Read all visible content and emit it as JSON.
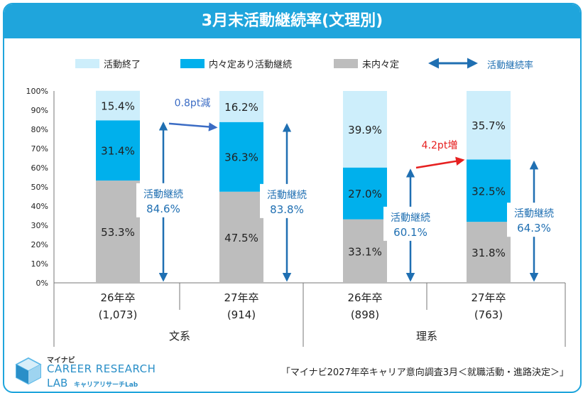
{
  "title": "3月末活動継続率(文理別)",
  "source": "「マイナビ2027年卒キャリア意向調査3月＜就職活動・進路決定＞」",
  "logo": {
    "small": "マイナビ",
    "main": "CAREER RESEARCH",
    "lab": "LAB",
    "sub": "キャリアリサーチLab"
  },
  "colors": {
    "title_bg": "#1fa5dc",
    "ended": "#cdeefb",
    "continuing": "#00b0ec",
    "undecided": "#bdbdbd",
    "arrow": "#1f6fb2",
    "annotation_blue": "#3b6cc4",
    "annotation_red": "#e62020"
  },
  "chart_data": {
    "type": "bar",
    "stacked": true,
    "title": "3月末活動継続率(文理別)",
    "ylim": [
      0,
      100
    ],
    "yticks": [
      "0%",
      "10%",
      "20%",
      "30%",
      "40%",
      "50%",
      "60%",
      "70%",
      "80%",
      "90%",
      "100%"
    ],
    "legend": [
      {
        "key": "ended",
        "label": "活動終了"
      },
      {
        "key": "continuing",
        "label": "内々定あり活動継続"
      },
      {
        "key": "undecided",
        "label": "未内々定"
      },
      {
        "key": "rate",
        "label": "活動継続率"
      }
    ],
    "categories": [
      "26年卒",
      "27年卒",
      "26年卒",
      "27年卒"
    ],
    "sample_sizes": [
      "(1,073)",
      "(914)",
      "(898)",
      "(763)"
    ],
    "groups": [
      {
        "label": "文系",
        "start": 0,
        "end": 1
      },
      {
        "label": "理系",
        "start": 2,
        "end": 3
      }
    ],
    "series": [
      {
        "name": "未内々定",
        "key": "undecided",
        "values": [
          53.3,
          47.5,
          33.1,
          31.8
        ],
        "labels": [
          "53.3%",
          "47.5%",
          "33.1%",
          "31.8%"
        ]
      },
      {
        "name": "内々定あり活動継続",
        "key": "continuing",
        "values": [
          31.4,
          36.3,
          27.0,
          32.5
        ],
        "labels": [
          "31.4%",
          "36.3%",
          "27.0%",
          "32.5%"
        ]
      },
      {
        "name": "活動終了",
        "key": "ended",
        "values": [
          15.4,
          16.2,
          39.9,
          35.7
        ],
        "labels": [
          "15.4%",
          "16.2%",
          "39.9%",
          "35.7%"
        ]
      }
    ],
    "continuation": [
      {
        "label": "活動継続",
        "value": "84.6%",
        "top": 84.6
      },
      {
        "label": "活動継続",
        "value": "83.8%",
        "top": 83.8
      },
      {
        "label": "活動継続",
        "value": "60.1%",
        "top": 60.1
      },
      {
        "label": "活動継続",
        "value": "64.3%",
        "top": 64.3
      }
    ],
    "annotations": [
      {
        "text": "0.8pt減",
        "from": 0,
        "to": 1,
        "color": "#3b6cc4",
        "y_from": 83,
        "y_to": 81,
        "text_y": 92
      },
      {
        "text": "4.2pt増",
        "from": 2,
        "to": 3,
        "color": "#e62020",
        "y_from": 60,
        "y_to": 64,
        "text_y": 70
      }
    ]
  }
}
